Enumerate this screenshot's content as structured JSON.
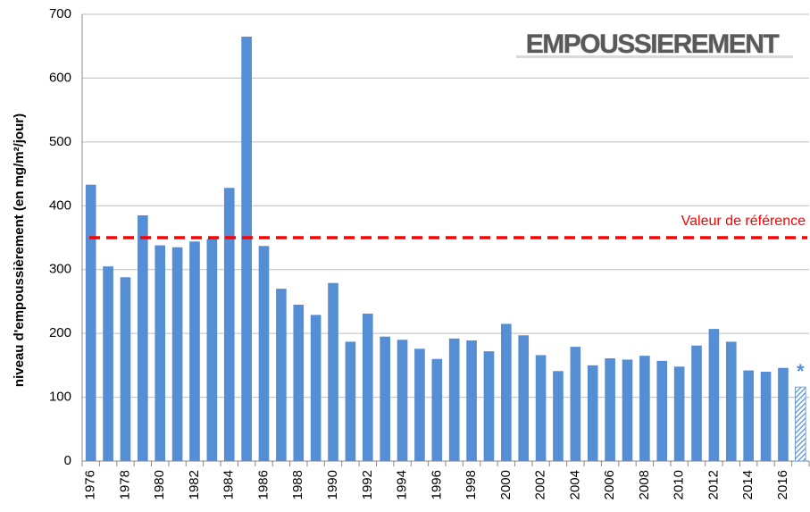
{
  "chart_data": {
    "type": "bar",
    "title": "EMPOUSSIEREMENT",
    "y_label": "niveau d'empoussièrement (en mg/m²/jour)",
    "categories": [
      "1976",
      null,
      "1978",
      null,
      "1980",
      null,
      "1982",
      null,
      "1984",
      null,
      "1986",
      null,
      "1988",
      null,
      "1990",
      null,
      "1992",
      null,
      "1994",
      null,
      "1996",
      null,
      "1998",
      null,
      "2000",
      null,
      "2002",
      null,
      "2004",
      null,
      "2006",
      null,
      "2008",
      null,
      "2010",
      null,
      "2012",
      null,
      "2014",
      null,
      "2016",
      null
    ],
    "series": [
      {
        "color": "#558ed5",
        "values": [
          433,
          305,
          288,
          385,
          338,
          335,
          344,
          348,
          428,
          665,
          337,
          270,
          245,
          229,
          279,
          187,
          231,
          195,
          190,
          176,
          160,
          192,
          189,
          172,
          215,
          197,
          166,
          141,
          179,
          150,
          161,
          159,
          165,
          157,
          148,
          181,
          207,
          187,
          142,
          140,
          146,
          null
        ]
      },
      {
        "color": "#558ed5",
        "pattern": "hatch",
        "values": [
          null,
          null,
          null,
          null,
          null,
          null,
          null,
          null,
          null,
          null,
          null,
          null,
          null,
          null,
          null,
          null,
          null,
          null,
          null,
          null,
          null,
          null,
          null,
          null,
          null,
          null,
          null,
          null,
          null,
          null,
          null,
          null,
          null,
          null,
          null,
          null,
          null,
          null,
          null,
          null,
          null,
          116
        ]
      }
    ],
    "annotation": "*",
    "reference_line": {
      "value": 350,
      "label": "Valeur de référence",
      "color": "#ff0000"
    },
    "ylim": [
      0,
      700
    ],
    "yticks": [
      0,
      100,
      200,
      300,
      400,
      500,
      600,
      700
    ],
    "grid": true
  }
}
